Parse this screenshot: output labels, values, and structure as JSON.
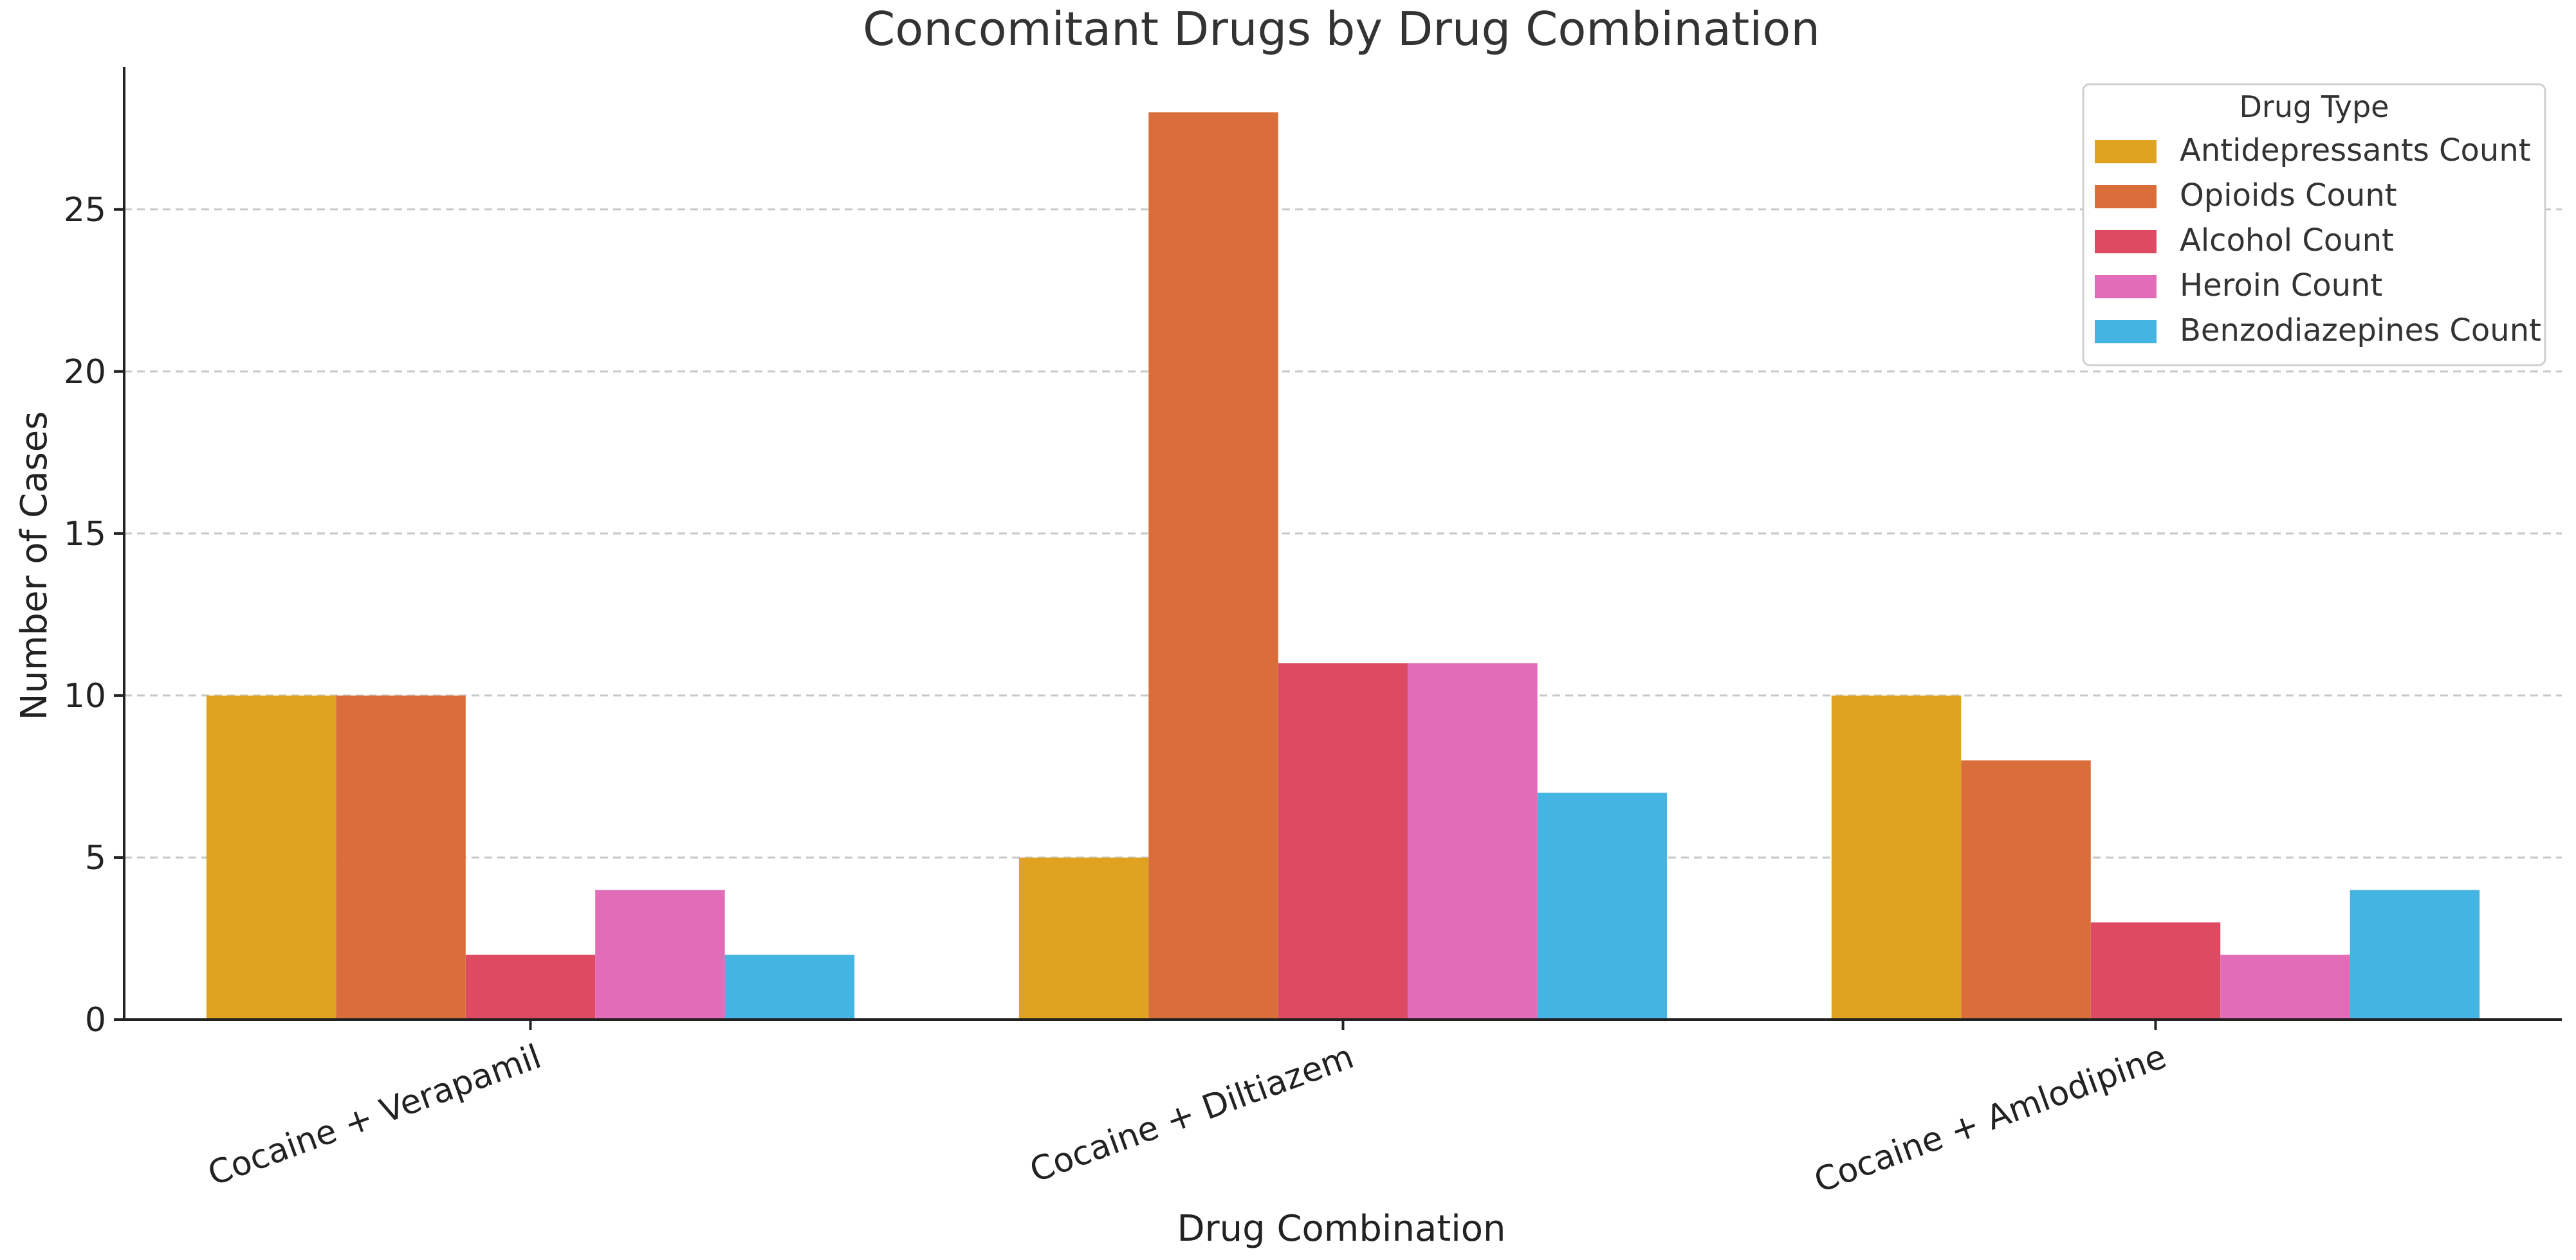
{
  "chart_data": {
    "type": "bar",
    "title": "Concomitant Drugs by Drug Combination",
    "xlabel": "Drug Combination",
    "ylabel": "Number of Cases",
    "categories": [
      "Cocaine + Verapamil",
      "Cocaine + Diltiazem",
      "Cocaine + Amlodipine"
    ],
    "series": [
      {
        "name": "Antidepressants Count",
        "color": "#DFA221",
        "values": [
          10,
          5,
          10
        ]
      },
      {
        "name": "Opioids Count",
        "color": "#D96E3A",
        "values": [
          10,
          28,
          8
        ]
      },
      {
        "name": "Alcohol Count",
        "color": "#DD4A62",
        "values": [
          2,
          11,
          3
        ]
      },
      {
        "name": "Heroin Count",
        "color": "#E36CB8",
        "values": [
          4,
          11,
          2
        ]
      },
      {
        "name": "Benzodiazepines Count",
        "color": "#44B4E2",
        "values": [
          2,
          7,
          4
        ]
      }
    ],
    "ylim": [
      0,
      29.4
    ],
    "yticks": [
      0,
      5,
      10,
      15,
      20,
      25
    ],
    "grid": "horizontal dashed",
    "legend": {
      "title": "Drug Type",
      "placement": "top-right"
    }
  }
}
